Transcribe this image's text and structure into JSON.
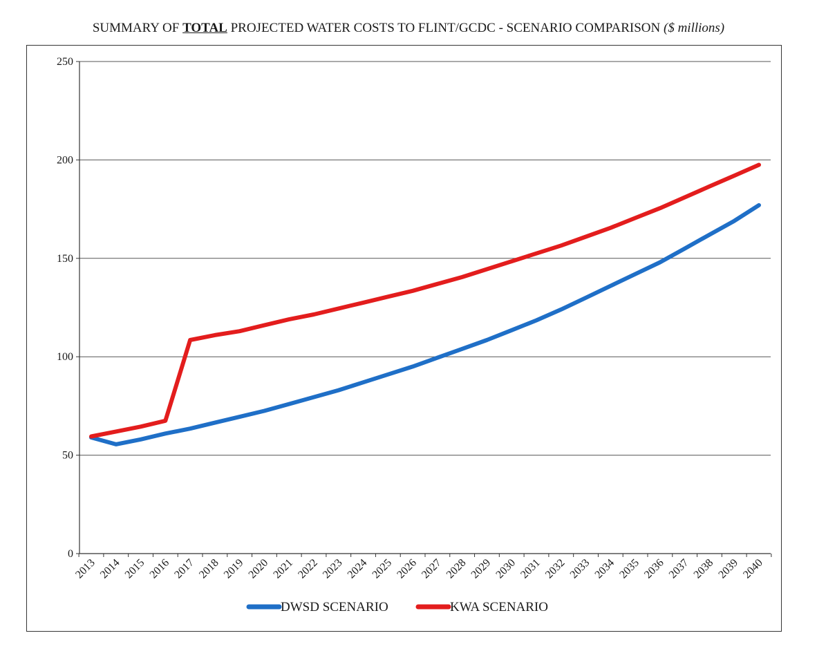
{
  "title": {
    "prefix": "SUMMARY OF ",
    "emphasis": "TOTAL",
    "main": " PROJECTED WATER COSTS TO FLINT/GCDC - SCENARIO COMPARISON ",
    "units": "($ millions)"
  },
  "chart_data": {
    "type": "line",
    "title": "SUMMARY OF TOTAL PROJECTED WATER COSTS TO FLINT/GCDC - SCENARIO COMPARISON ($ millions)",
    "xlabel": "",
    "ylabel": "",
    "x": [
      "2013",
      "2014",
      "2015",
      "2016",
      "2017",
      "2018",
      "2019",
      "2020",
      "2021",
      "2022",
      "2023",
      "2024",
      "2025",
      "2026",
      "2027",
      "2028",
      "2029",
      "2030",
      "2031",
      "2032",
      "2033",
      "2034",
      "2035",
      "2036",
      "2037",
      "2038",
      "2039",
      "2040"
    ],
    "ylim": [
      0,
      250
    ],
    "yticks": [
      0,
      50,
      100,
      150,
      200,
      250
    ],
    "grid": true,
    "legend_position": "bottom",
    "series": [
      {
        "name": "DWSD SCENARIO",
        "color": "#1f6fc7",
        "values": [
          59,
          55.5,
          58,
          61,
          63.5,
          66.5,
          69.5,
          72.5,
          76,
          79.5,
          83,
          87,
          91,
          95,
          99.5,
          104,
          108.5,
          113.5,
          118.5,
          124,
          130,
          136,
          142,
          148,
          155,
          162,
          169,
          177
        ]
      },
      {
        "name": "KWA SCENARIO",
        "color": "#e31d1d",
        "values": [
          59.5,
          62,
          64.5,
          67.5,
          108.5,
          111,
          113,
          116,
          119,
          121.5,
          124.5,
          127.5,
          130.5,
          133.5,
          137,
          140.5,
          144.5,
          148.5,
          152.5,
          156.5,
          161,
          165.5,
          170.5,
          175.5,
          181,
          186.5,
          192,
          197.5
        ]
      }
    ]
  }
}
